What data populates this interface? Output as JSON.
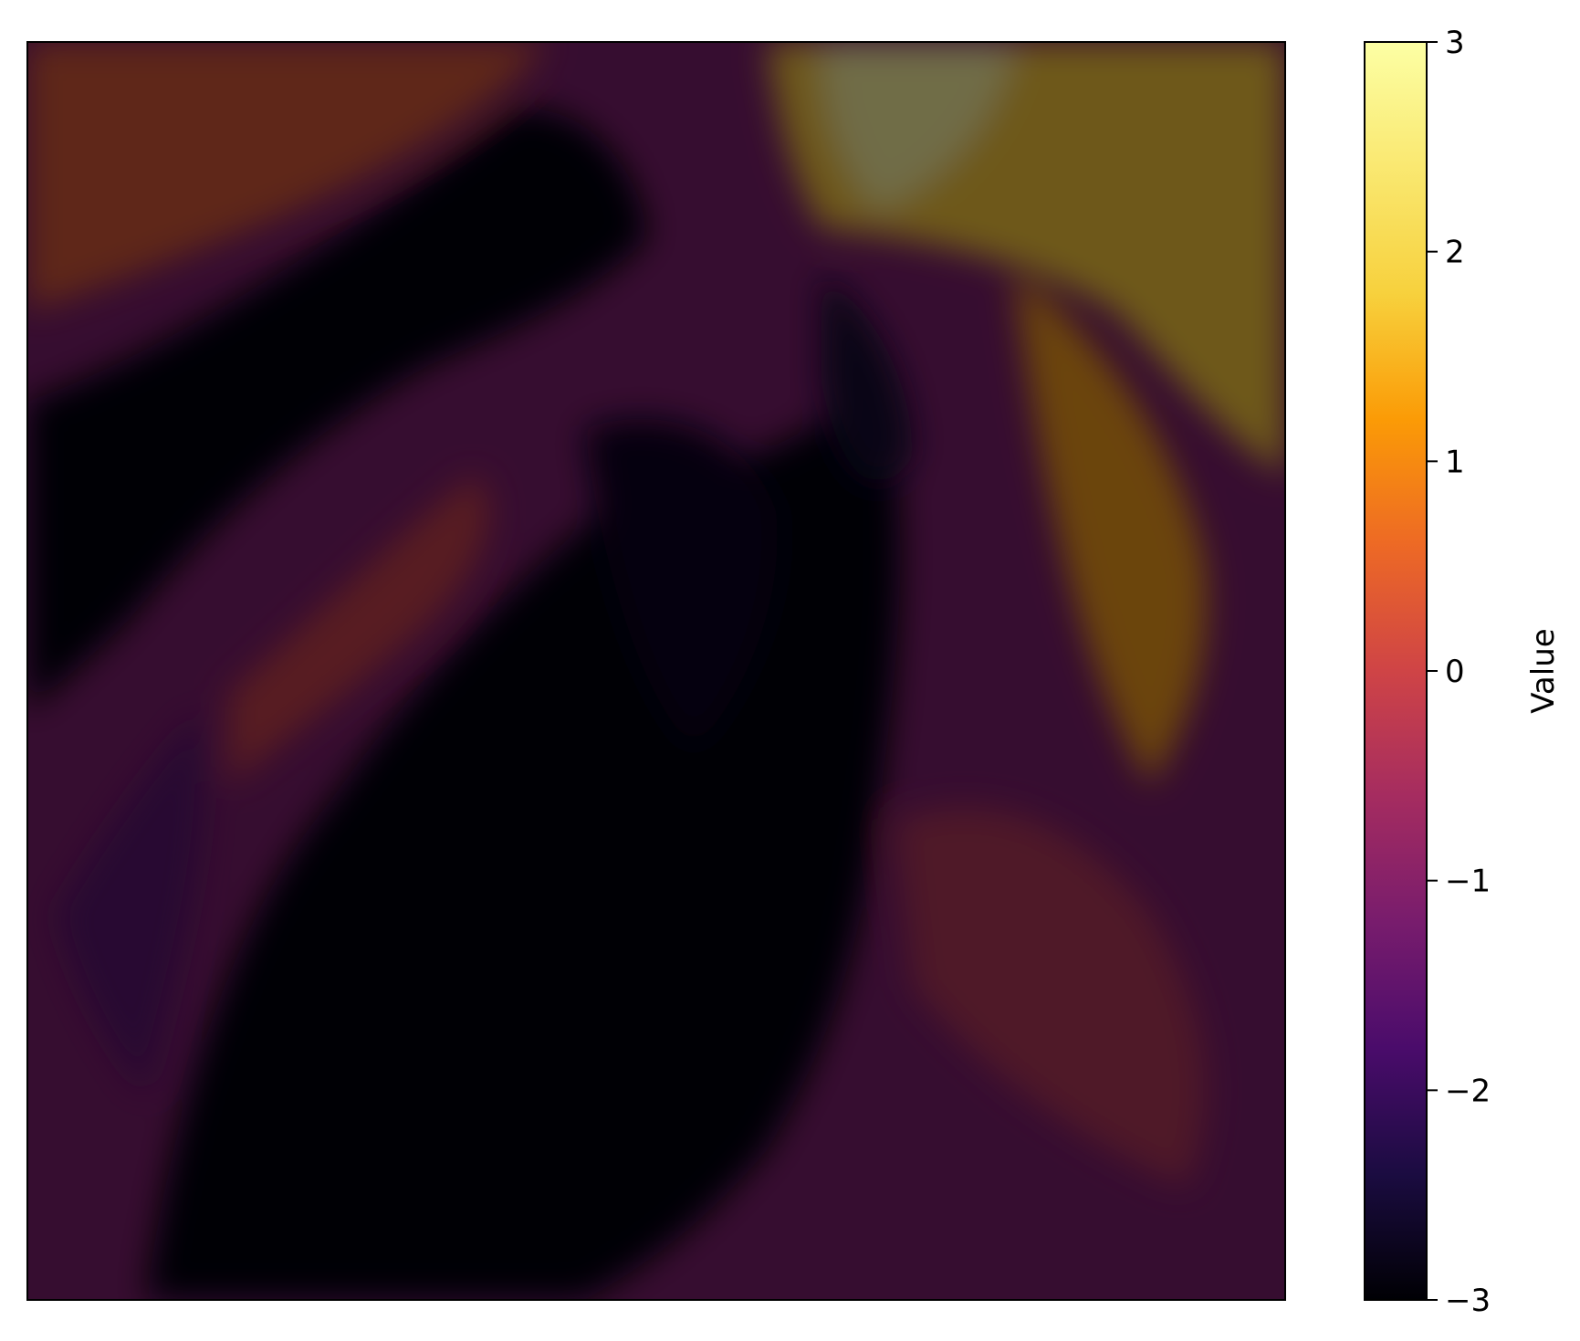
{
  "chart_data": {
    "type": "heatmap",
    "title": "",
    "xlabel": "",
    "ylabel": "",
    "colormap": "inferno",
    "x_ticks_visible": false,
    "y_ticks_visible": false,
    "colorbar": {
      "label": "Value",
      "range": [
        -3,
        3
      ],
      "ticks": [
        3,
        2,
        1,
        0,
        -1,
        -2,
        -3
      ],
      "tick_labels": [
        "3",
        "2",
        "1",
        "0",
        "−1",
        "−2",
        "−3"
      ]
    },
    "colormap_stops": [
      {
        "value": -3.0,
        "color": "#000004"
      },
      {
        "value": -2.4,
        "color": "#1b0c41"
      },
      {
        "value": -1.8,
        "color": "#4a0c6b"
      },
      {
        "value": -1.2,
        "color": "#781c6d"
      },
      {
        "value": -0.6,
        "color": "#a52c60"
      },
      {
        "value": 0.0,
        "color": "#cf4446"
      },
      {
        "value": 0.6,
        "color": "#ed6925"
      },
      {
        "value": 1.2,
        "color": "#fb9b06"
      },
      {
        "value": 1.8,
        "color": "#f7d13d"
      },
      {
        "value": 3.0,
        "color": "#fcffa4"
      }
    ]
  }
}
